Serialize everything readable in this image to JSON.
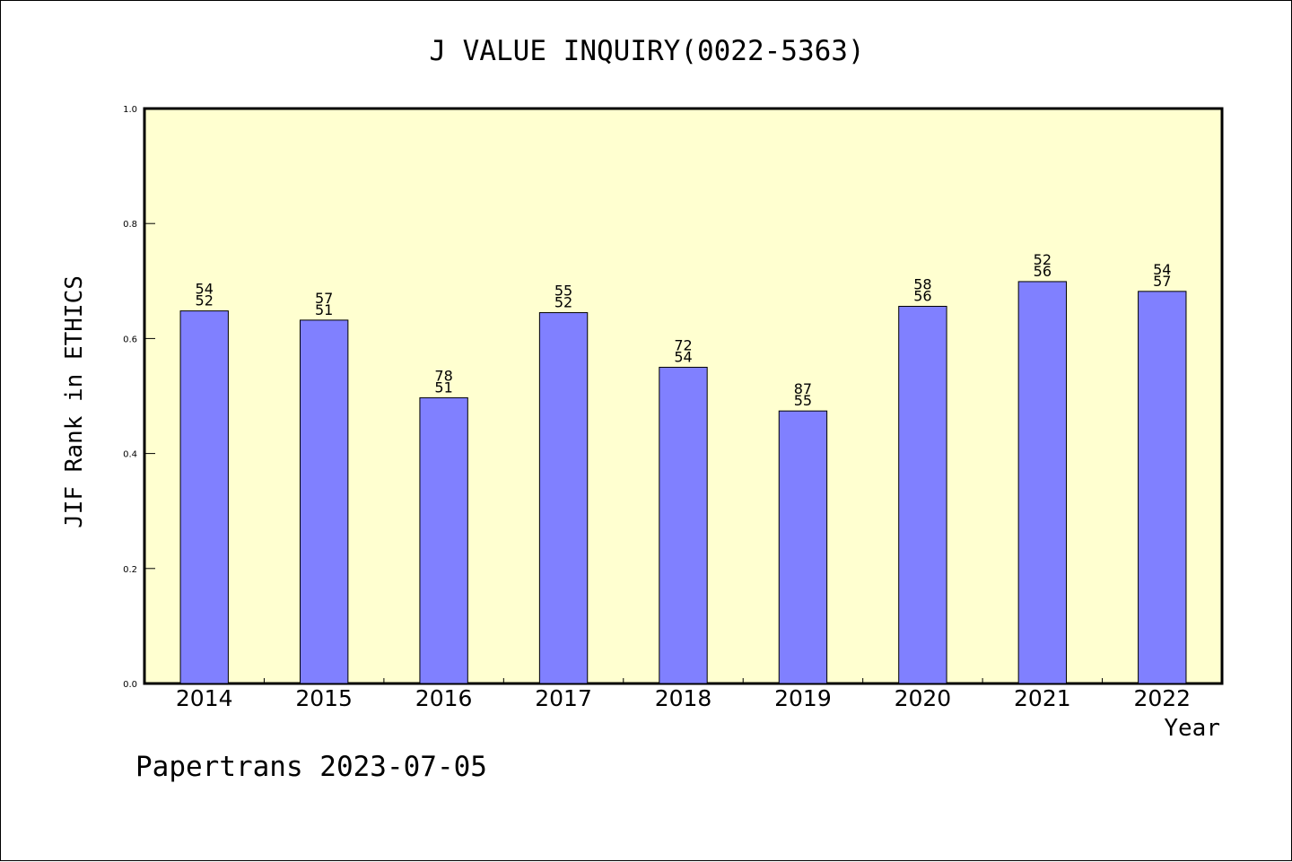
{
  "chart_data": {
    "type": "bar",
    "title": "J VALUE INQUIRY(0022-5363)",
    "xlabel": "Year",
    "ylabel": "JIF Rank in ETHICS",
    "footer": "Papertrans 2023-07-05",
    "categories": [
      "2014",
      "2015",
      "2016",
      "2017",
      "2018",
      "2019",
      "2020",
      "2021",
      "2022"
    ],
    "series": [
      {
        "values": [
          0.648,
          0.632,
          0.497,
          0.645,
          0.55,
          0.474,
          0.656,
          0.699,
          0.682
        ],
        "labels_top": [
          "54",
          "57",
          "78",
          "55",
          "72",
          "87",
          "58",
          "52",
          "54"
        ],
        "labels_bottom": [
          "52",
          "51",
          "51",
          "52",
          "54",
          "55",
          "56",
          "56",
          "57"
        ]
      }
    ],
    "ylim": [
      0,
      1.0
    ],
    "yticks": [
      "0.0",
      "0.2",
      "0.4",
      "0.6",
      "0.8",
      "1.0"
    ],
    "ytick_values": [
      0,
      0.2,
      0.4,
      0.6,
      0.8,
      1.0
    ],
    "grid": false,
    "colors": {
      "plot_background": "#ffffd0",
      "bar_fill": "#8080ff",
      "bar_stroke": "#000000",
      "axis": "#000000"
    }
  }
}
